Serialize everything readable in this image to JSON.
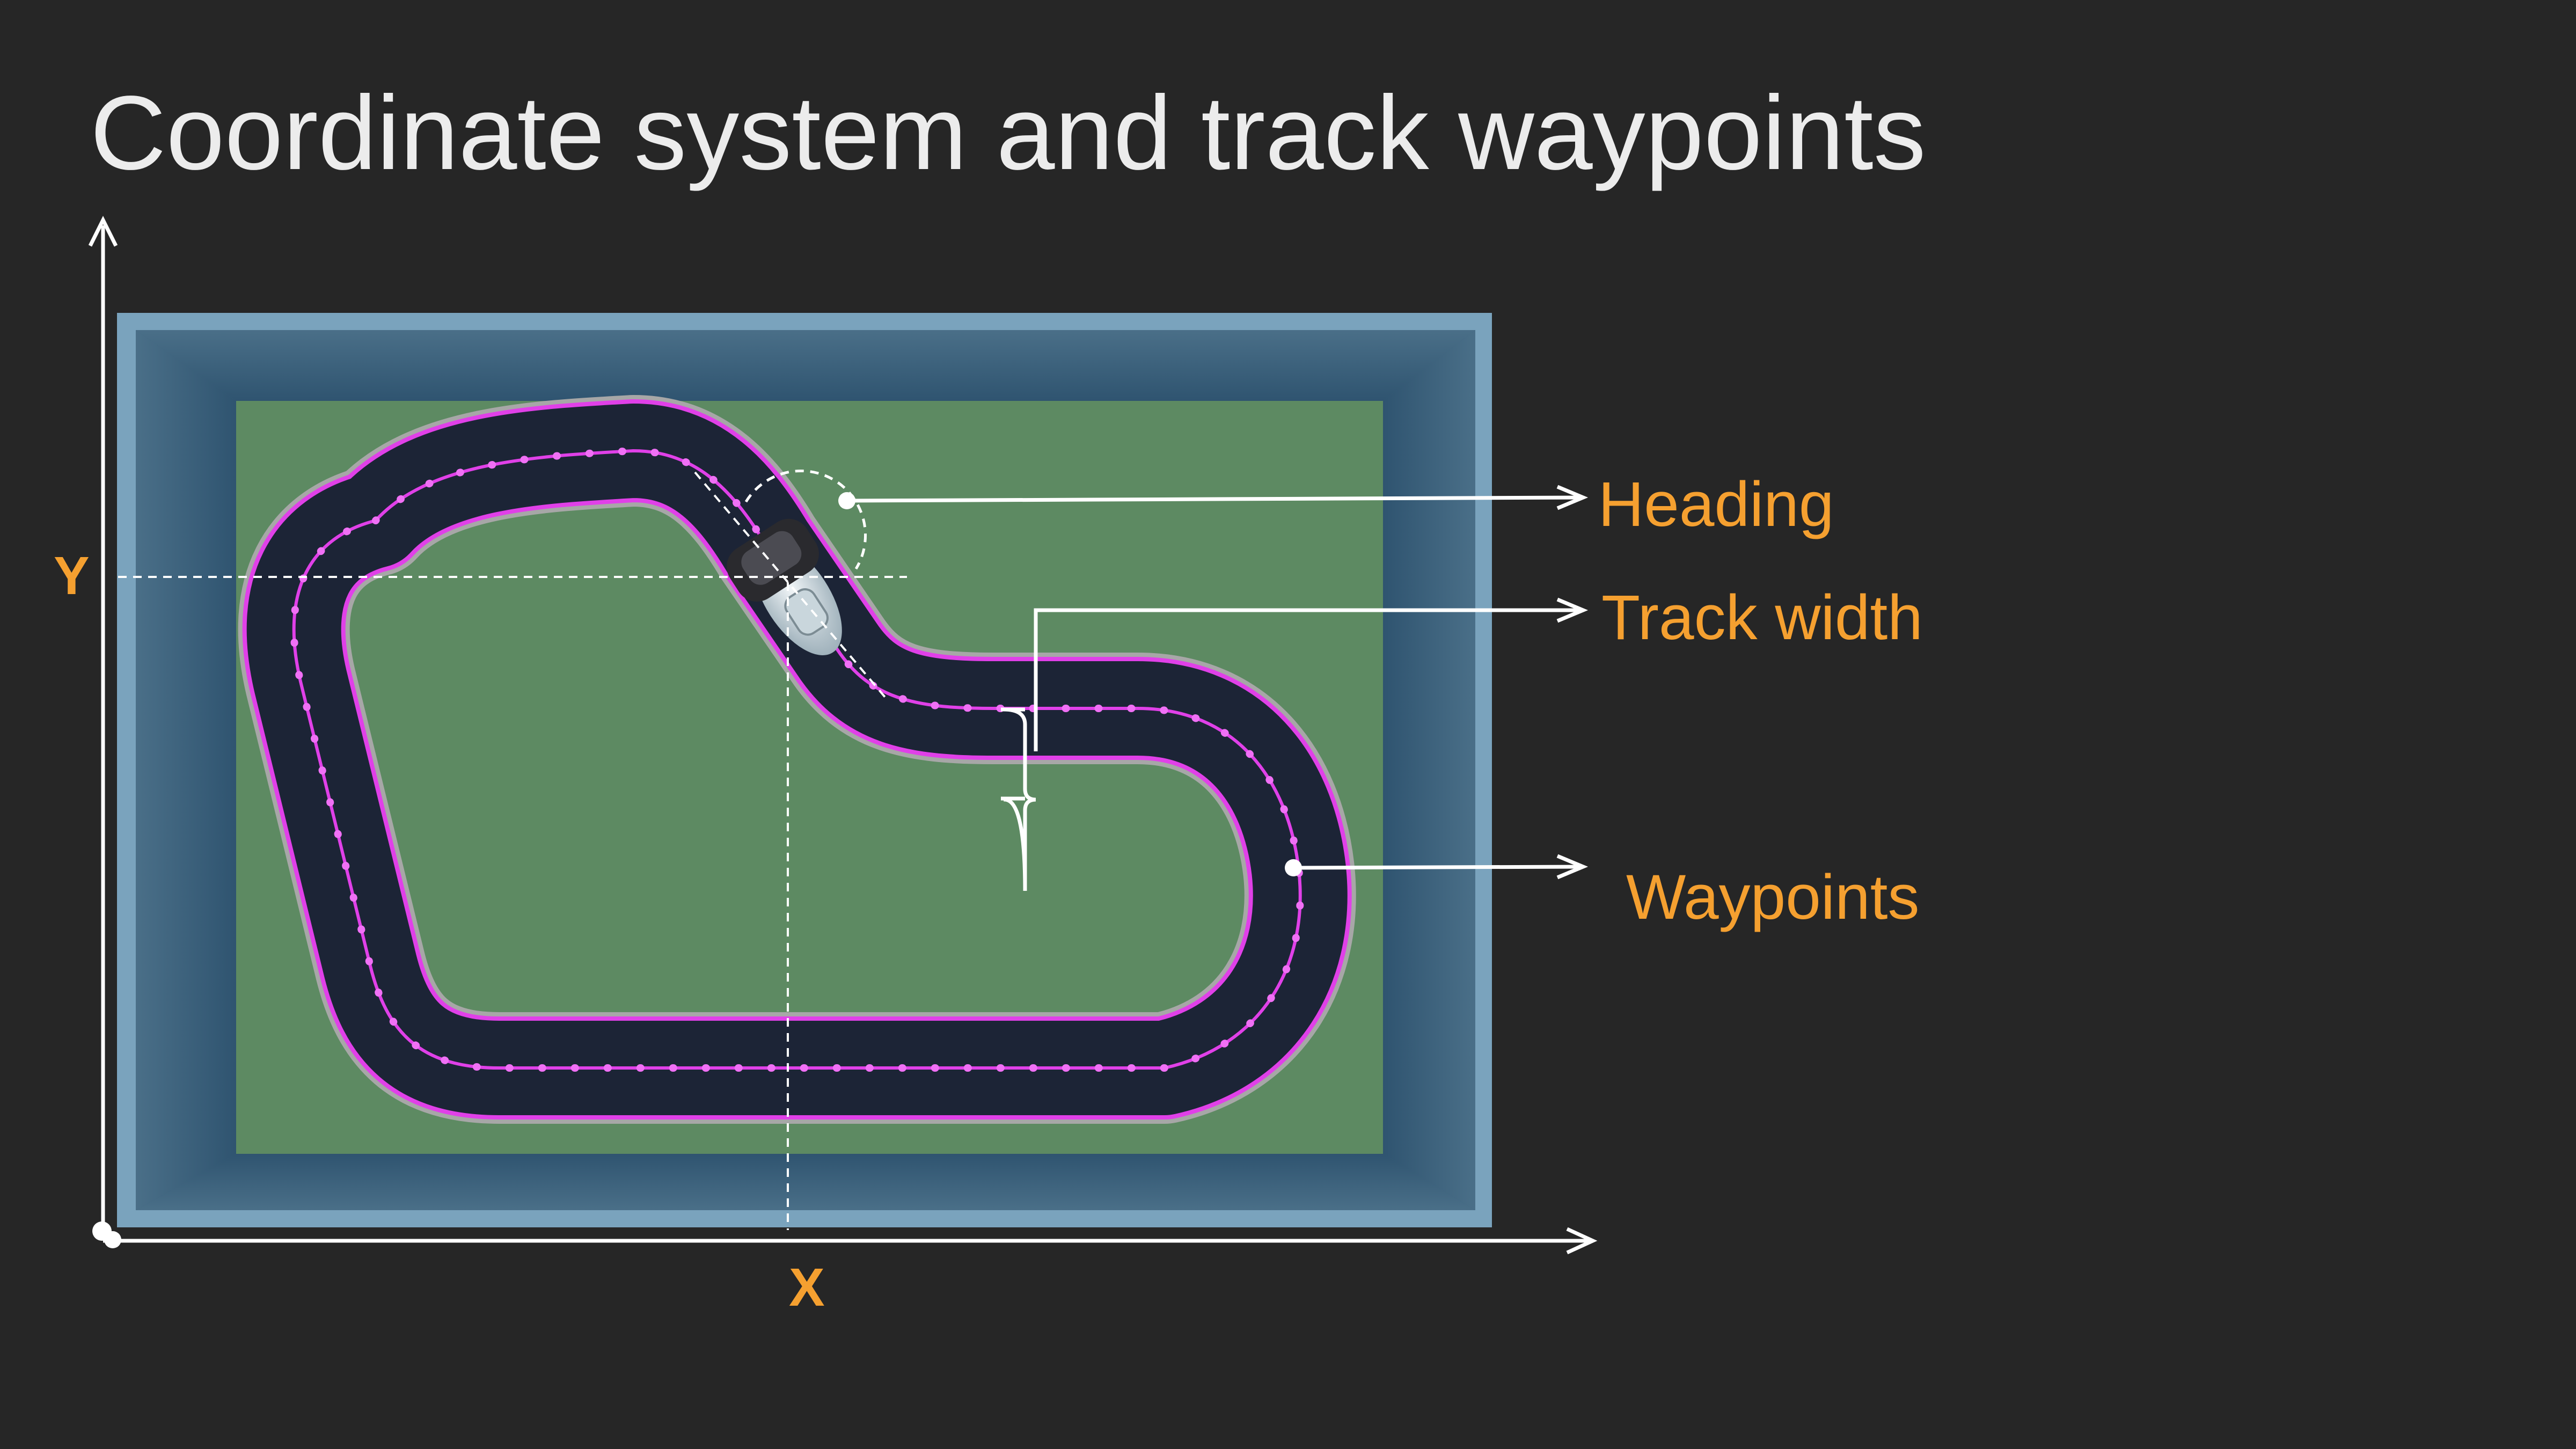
{
  "title": "Coordinate system and track waypoints",
  "axes": {
    "x_label": "X",
    "y_label": "Y"
  },
  "callouts": {
    "heading": "Heading",
    "track_width": "Track width",
    "waypoints": "Waypoints"
  },
  "colors": {
    "background": "#262626",
    "title_text": "#ececec",
    "label_accent": "#f5a030",
    "arena_frame": "#7aa3bd",
    "grass": "#5d8a62",
    "track": "#1c2436",
    "waypoint_magenta": "#e040e8"
  },
  "icons": {
    "vehicle": "race-car-icon"
  }
}
